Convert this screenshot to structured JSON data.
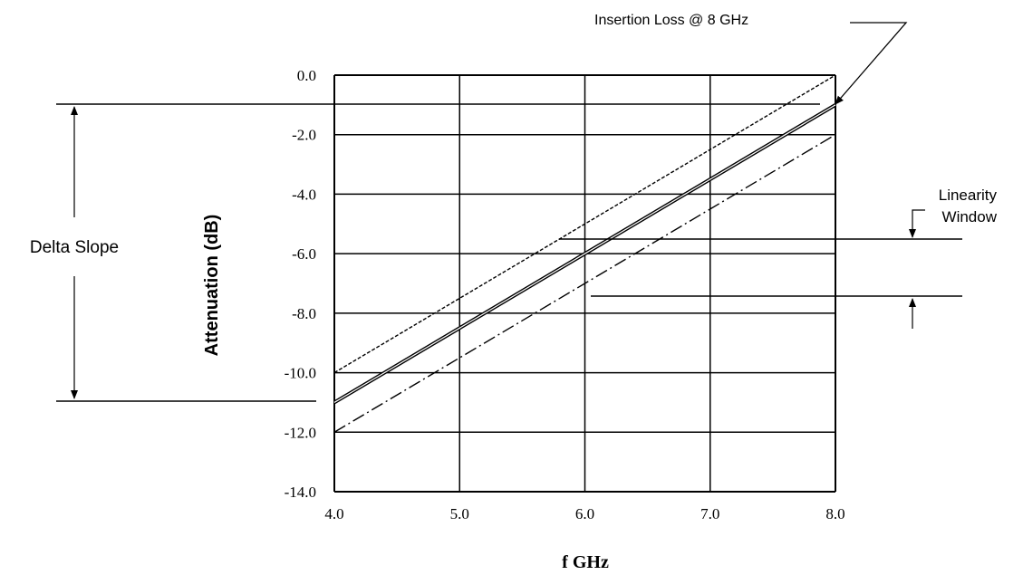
{
  "chart_data": {
    "type": "line",
    "title": "",
    "xlabel": "f GHz",
    "ylabel": "Attenuation (dB)",
    "xlim": [
      4.0,
      8.0
    ],
    "ylim": [
      -14.0,
      0.0
    ],
    "x_ticks": [
      "4.0",
      "5.0",
      "6.0",
      "7.0",
      "8.0"
    ],
    "y_ticks": [
      "0.0",
      "-2.0",
      "-4.0",
      "-6.0",
      "-8.0",
      "-10.0",
      "-12.0",
      "-14.0"
    ],
    "grid": true,
    "series": [
      {
        "style": "dashed",
        "x": [
          4.0,
          8.0
        ],
        "y": [
          -10.0,
          0.0
        ]
      },
      {
        "style": "double-solid",
        "x": [
          4.0,
          8.0
        ],
        "y": [
          -11.0,
          -1.0
        ]
      },
      {
        "style": "dash-dot",
        "x": [
          4.0,
          8.0
        ],
        "y": [
          -12.0,
          -2.0
        ]
      }
    ],
    "annotations": {
      "insertion_loss": "Insertion Loss @ 8 GHz",
      "delta_slope": "Delta Slope",
      "linearity_window_line1": "Linearity",
      "linearity_window_line2": "Window"
    }
  }
}
